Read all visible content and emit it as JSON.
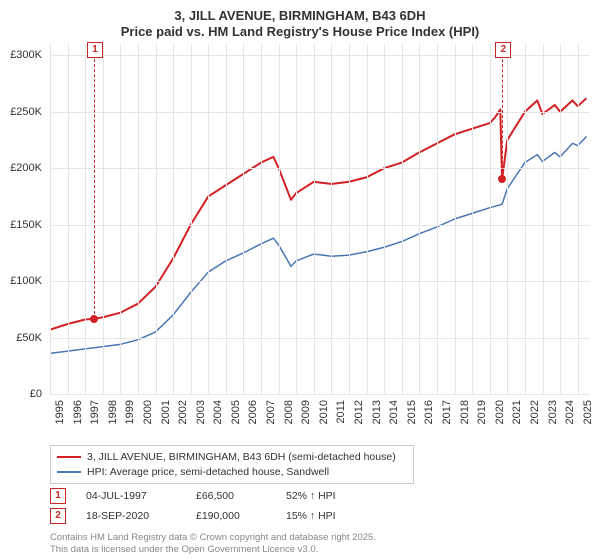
{
  "title": {
    "line1": "3, JILL AVENUE, BIRMINGHAM, B43 6DH",
    "line2": "Price paid vs. HM Land Registry's House Price Index (HPI)"
  },
  "chart": {
    "type": "line",
    "background_color": "#ffffff",
    "grid_color": "#e6e6e6",
    "text_color": "#333333",
    "tick_fontsize": 11,
    "title_fontsize": 13,
    "x": {
      "min": 1995,
      "max": 2025.7,
      "ticks": [
        1995,
        1996,
        1997,
        1998,
        1999,
        2000,
        2001,
        2002,
        2003,
        2004,
        2005,
        2006,
        2007,
        2008,
        2009,
        2010,
        2011,
        2012,
        2013,
        2014,
        2015,
        2016,
        2017,
        2018,
        2019,
        2020,
        2021,
        2022,
        2023,
        2024,
        2025
      ],
      "tick_rotation": -90
    },
    "y": {
      "min": 0,
      "max": 310000,
      "ticks": [
        0,
        50000,
        100000,
        150000,
        200000,
        250000,
        300000
      ],
      "tick_labels": [
        "£0",
        "£50K",
        "£100K",
        "£150K",
        "£200K",
        "£250K",
        "£300K"
      ]
    },
    "series": [
      {
        "name": "price_paid",
        "label": "3, JILL AVENUE, BIRMINGHAM, B43 6DH (semi-detached house)",
        "color": "#d32024",
        "line_width": 2,
        "points": [
          [
            1995,
            57000
          ],
          [
            1996,
            62000
          ],
          [
            1997,
            66000
          ],
          [
            1997.5,
            66500
          ],
          [
            1998,
            68000
          ],
          [
            1999,
            72000
          ],
          [
            2000,
            80000
          ],
          [
            2001,
            95000
          ],
          [
            2002,
            120000
          ],
          [
            2003,
            150000
          ],
          [
            2004,
            175000
          ],
          [
            2005,
            185000
          ],
          [
            2006,
            195000
          ],
          [
            2007,
            205000
          ],
          [
            2007.7,
            210000
          ],
          [
            2008,
            200000
          ],
          [
            2008.7,
            172000
          ],
          [
            2009,
            178000
          ],
          [
            2010,
            188000
          ],
          [
            2011,
            186000
          ],
          [
            2012,
            188000
          ],
          [
            2013,
            192000
          ],
          [
            2014,
            200000
          ],
          [
            2015,
            205000
          ],
          [
            2016,
            214000
          ],
          [
            2017,
            222000
          ],
          [
            2018,
            230000
          ],
          [
            2019,
            235000
          ],
          [
            2020,
            240000
          ],
          [
            2020.3,
            245000
          ],
          [
            2020.6,
            252000
          ],
          [
            2020.7,
            190000
          ],
          [
            2021,
            225000
          ],
          [
            2022,
            250000
          ],
          [
            2022.7,
            260000
          ],
          [
            2023,
            248000
          ],
          [
            2023.7,
            256000
          ],
          [
            2024,
            250000
          ],
          [
            2024.7,
            260000
          ],
          [
            2025,
            255000
          ],
          [
            2025.5,
            262000
          ]
        ]
      },
      {
        "name": "hpi",
        "label": "HPI: Average price, semi-detached house, Sandwell",
        "color": "#4a77b4",
        "line_width": 1.5,
        "points": [
          [
            1995,
            36000
          ],
          [
            1996,
            38000
          ],
          [
            1997,
            40000
          ],
          [
            1998,
            42000
          ],
          [
            1999,
            44000
          ],
          [
            2000,
            48000
          ],
          [
            2001,
            55000
          ],
          [
            2002,
            70000
          ],
          [
            2003,
            90000
          ],
          [
            2004,
            108000
          ],
          [
            2005,
            118000
          ],
          [
            2006,
            125000
          ],
          [
            2007,
            133000
          ],
          [
            2007.7,
            138000
          ],
          [
            2008,
            132000
          ],
          [
            2008.7,
            113000
          ],
          [
            2009,
            118000
          ],
          [
            2010,
            124000
          ],
          [
            2011,
            122000
          ],
          [
            2012,
            123000
          ],
          [
            2013,
            126000
          ],
          [
            2014,
            130000
          ],
          [
            2015,
            135000
          ],
          [
            2016,
            142000
          ],
          [
            2017,
            148000
          ],
          [
            2018,
            155000
          ],
          [
            2019,
            160000
          ],
          [
            2020,
            165000
          ],
          [
            2020.7,
            168000
          ],
          [
            2021,
            182000
          ],
          [
            2022,
            205000
          ],
          [
            2022.7,
            212000
          ],
          [
            2023,
            206000
          ],
          [
            2023.7,
            214000
          ],
          [
            2024,
            210000
          ],
          [
            2024.7,
            222000
          ],
          [
            2025,
            220000
          ],
          [
            2025.5,
            228000
          ]
        ]
      }
    ],
    "markers": [
      {
        "id": "1",
        "x": 1997.5,
        "y": 66500,
        "box_color": "#c62828",
        "dot_color": "#d32024"
      },
      {
        "id": "2",
        "x": 2020.71,
        "y": 190000,
        "box_color": "#c62828",
        "dot_color": "#d32024"
      }
    ]
  },
  "legend": {
    "border_color": "#cccccc"
  },
  "events": [
    {
      "id": "1",
      "date": "04-JUL-1997",
      "price": "£66,500",
      "diff": "52% ↑ HPI"
    },
    {
      "id": "2",
      "date": "18-SEP-2020",
      "price": "£190,000",
      "diff": "15% ↑ HPI"
    }
  ],
  "footer": {
    "line1": "Contains HM Land Registry data © Crown copyright and database right 2025.",
    "line2": "This data is licensed under the Open Government Licence v3.0."
  }
}
